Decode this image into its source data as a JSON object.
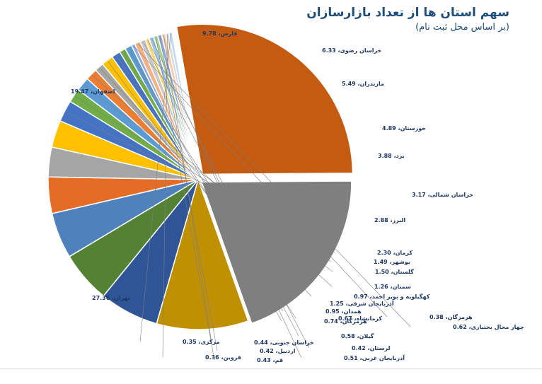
{
  "chart_data": {
    "type": "pie",
    "title": "سهم استان ها از تعداد بازارسازان",
    "subtitle": "(بر اساس محل ثبت نام)",
    "slices": [
      {
        "label": "تهران",
        "value": 27.36,
        "value_text": "27.36",
        "color": "#c55a11"
      },
      {
        "label": "اصفهان",
        "value": 19.47,
        "value_text": "19.47",
        "color": "#7f7f7f"
      },
      {
        "label": "فارس",
        "value": 9.78,
        "value_text": "9.78",
        "color": "#bf9000"
      },
      {
        "label": "خراسان رضوی",
        "value": 6.33,
        "value_text": "6.33",
        "color": "#2f5597"
      },
      {
        "label": "مازندران",
        "value": 5.49,
        "value_text": "5.49",
        "color": "#548235"
      },
      {
        "label": "خوزستان",
        "value": 4.89,
        "value_text": "4.89",
        "color": "#4f81bd"
      },
      {
        "label": "یزد",
        "value": 3.88,
        "value_text": "3.88",
        "color": "#e46c26"
      },
      {
        "label": "خراسان شمالی",
        "value": 3.17,
        "value_text": "3.17",
        "color": "#a5a5a5"
      },
      {
        "label": "البرز",
        "value": 2.88,
        "value_text": "2.88",
        "color": "#ffc000"
      },
      {
        "label": "کرمان",
        "value": 2.3,
        "value_text": "2.30",
        "color": "#4472c4"
      },
      {
        "label": "بوشهر",
        "value": 1.49,
        "value_text": "1.49",
        "color": "#70ad47"
      },
      {
        "label": "گلستان",
        "value": 1.5,
        "value_text": "1.50",
        "color": "#5b9bd5"
      },
      {
        "label": "سمنان",
        "value": 1.26,
        "value_text": "1.26",
        "color": "#ed7d31"
      },
      {
        "label": "کهگیلویه و بویر احمد",
        "value": 0.97,
        "value_text": "0.97",
        "color": "#a5a5a5"
      },
      {
        "label": "آذربایجان شرقی",
        "value": 1.25,
        "value_text": "1.25",
        "color": "#ffc000"
      },
      {
        "label": "همدان",
        "value": 0.95,
        "value_text": "0.95",
        "color": "#4472c4"
      },
      {
        "label": "کرمانشاه",
        "value": 0.67,
        "value_text": "0.67",
        "color": "#70ad47"
      },
      {
        "label": "هرمزگان",
        "value": 0.74,
        "value_text": "0.74",
        "color": "#5b9bd5"
      },
      {
        "label": "هرمزگان",
        "value": 0.38,
        "value_text": "0.38",
        "color": "#8faadc"
      },
      {
        "label": "چهار محال بختیاری",
        "value": 0.62,
        "value_text": "0.62",
        "color": "#f4b183"
      },
      {
        "label": "گیلان",
        "value": 0.58,
        "value_text": "0.58",
        "color": "#c9c9c9"
      },
      {
        "label": "لرستان",
        "value": 0.42,
        "value_text": "0.42",
        "color": "#ffd966"
      },
      {
        "label": "آذربایجان غربی",
        "value": 0.51,
        "value_text": "0.51",
        "color": "#9dc3e6"
      },
      {
        "label": "قم",
        "value": 0.43,
        "value_text": "0.43",
        "color": "#a9d18e"
      },
      {
        "label": "اردبیل",
        "value": 0.42,
        "value_text": "0.42",
        "color": "#8eaadb"
      },
      {
        "label": "خراسان جنوبی",
        "value": 0.44,
        "value_text": "0.44",
        "color": "#f8cbad"
      },
      {
        "label": "قزوین",
        "value": 0.36,
        "value_text": "0.36",
        "color": "#d9d9d9"
      },
      {
        "label": "مرکزی",
        "value": 0.35,
        "value_text": "0.35",
        "color": "#bdd7ee"
      }
    ],
    "legend": "none",
    "data_labels": "category,value"
  }
}
